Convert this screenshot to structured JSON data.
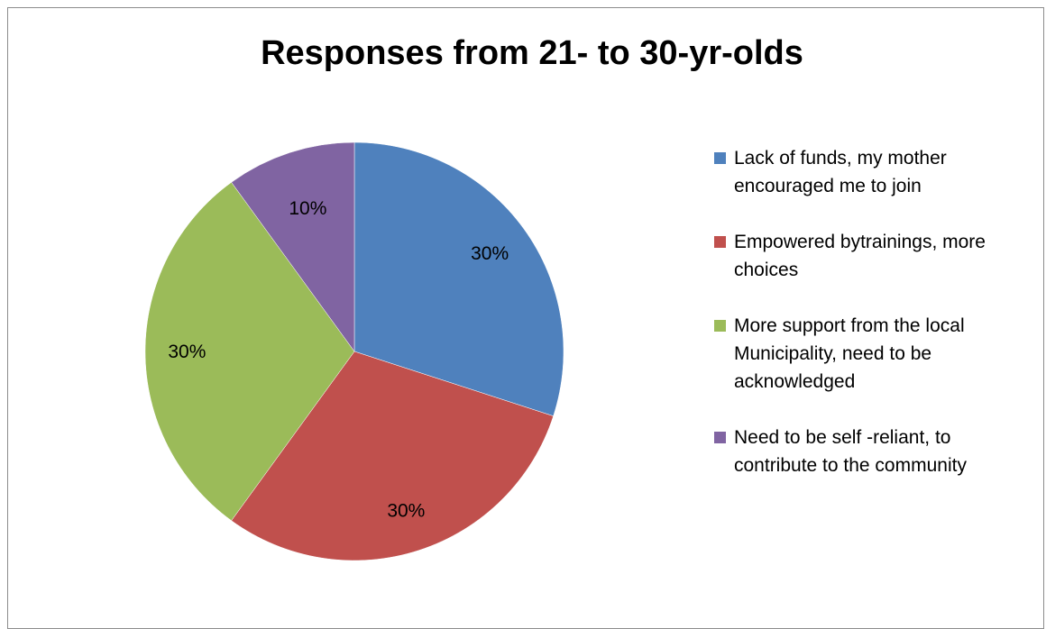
{
  "chart_data": {
    "type": "pie",
    "title": "Responses from 21- to 30-yr-olds",
    "slices": [
      {
        "name": "Lack of funds, my mother encouraged me to join",
        "value": 30,
        "label": "30%",
        "color": "#4f81bd"
      },
      {
        "name": "Empowered bytrainings, more choices",
        "value": 30,
        "label": "30%",
        "color": "#c0504d"
      },
      {
        "name": "More support from the local Municipality, need to be acknowledged",
        "value": 30,
        "label": "30%",
        "color": "#9bbb59"
      },
      {
        "name": "Need to be self -reliant, to contribute to the community",
        "value": 10,
        "label": "10%",
        "color": "#8064a2"
      }
    ],
    "legend_position": "right"
  }
}
